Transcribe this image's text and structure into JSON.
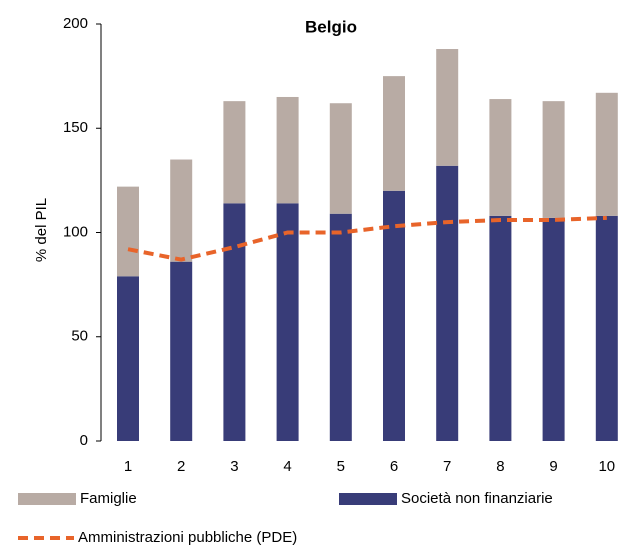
{
  "chart_data": {
    "type": "bar",
    "stacked": true,
    "title": "Belgio",
    "y_label": "% del PIL",
    "categories": [
      "1",
      "2",
      "3",
      "4",
      "5",
      "6",
      "7",
      "8",
      "9",
      "10"
    ],
    "series": [
      {
        "name": "Società non finanziarie",
        "color": "#383c78",
        "values": [
          79,
          86,
          114,
          114,
          109,
          120,
          132,
          108,
          107,
          108
        ]
      },
      {
        "name": "Famiglie",
        "color": "#b8aba4",
        "values": [
          43,
          49,
          49,
          51,
          53,
          55,
          56,
          56,
          56,
          59
        ]
      },
      {
        "name": "Amministrazioni pubbliche (PDE)",
        "type": "line",
        "dashed": true,
        "color": "#e8642a",
        "values": [
          92,
          87,
          93,
          100,
          100,
          103,
          105,
          106,
          106,
          107
        ]
      }
    ],
    "ylim": [
      0,
      200
    ],
    "yticks": [
      0,
      50,
      100,
      150,
      200
    ],
    "grid": false
  }
}
